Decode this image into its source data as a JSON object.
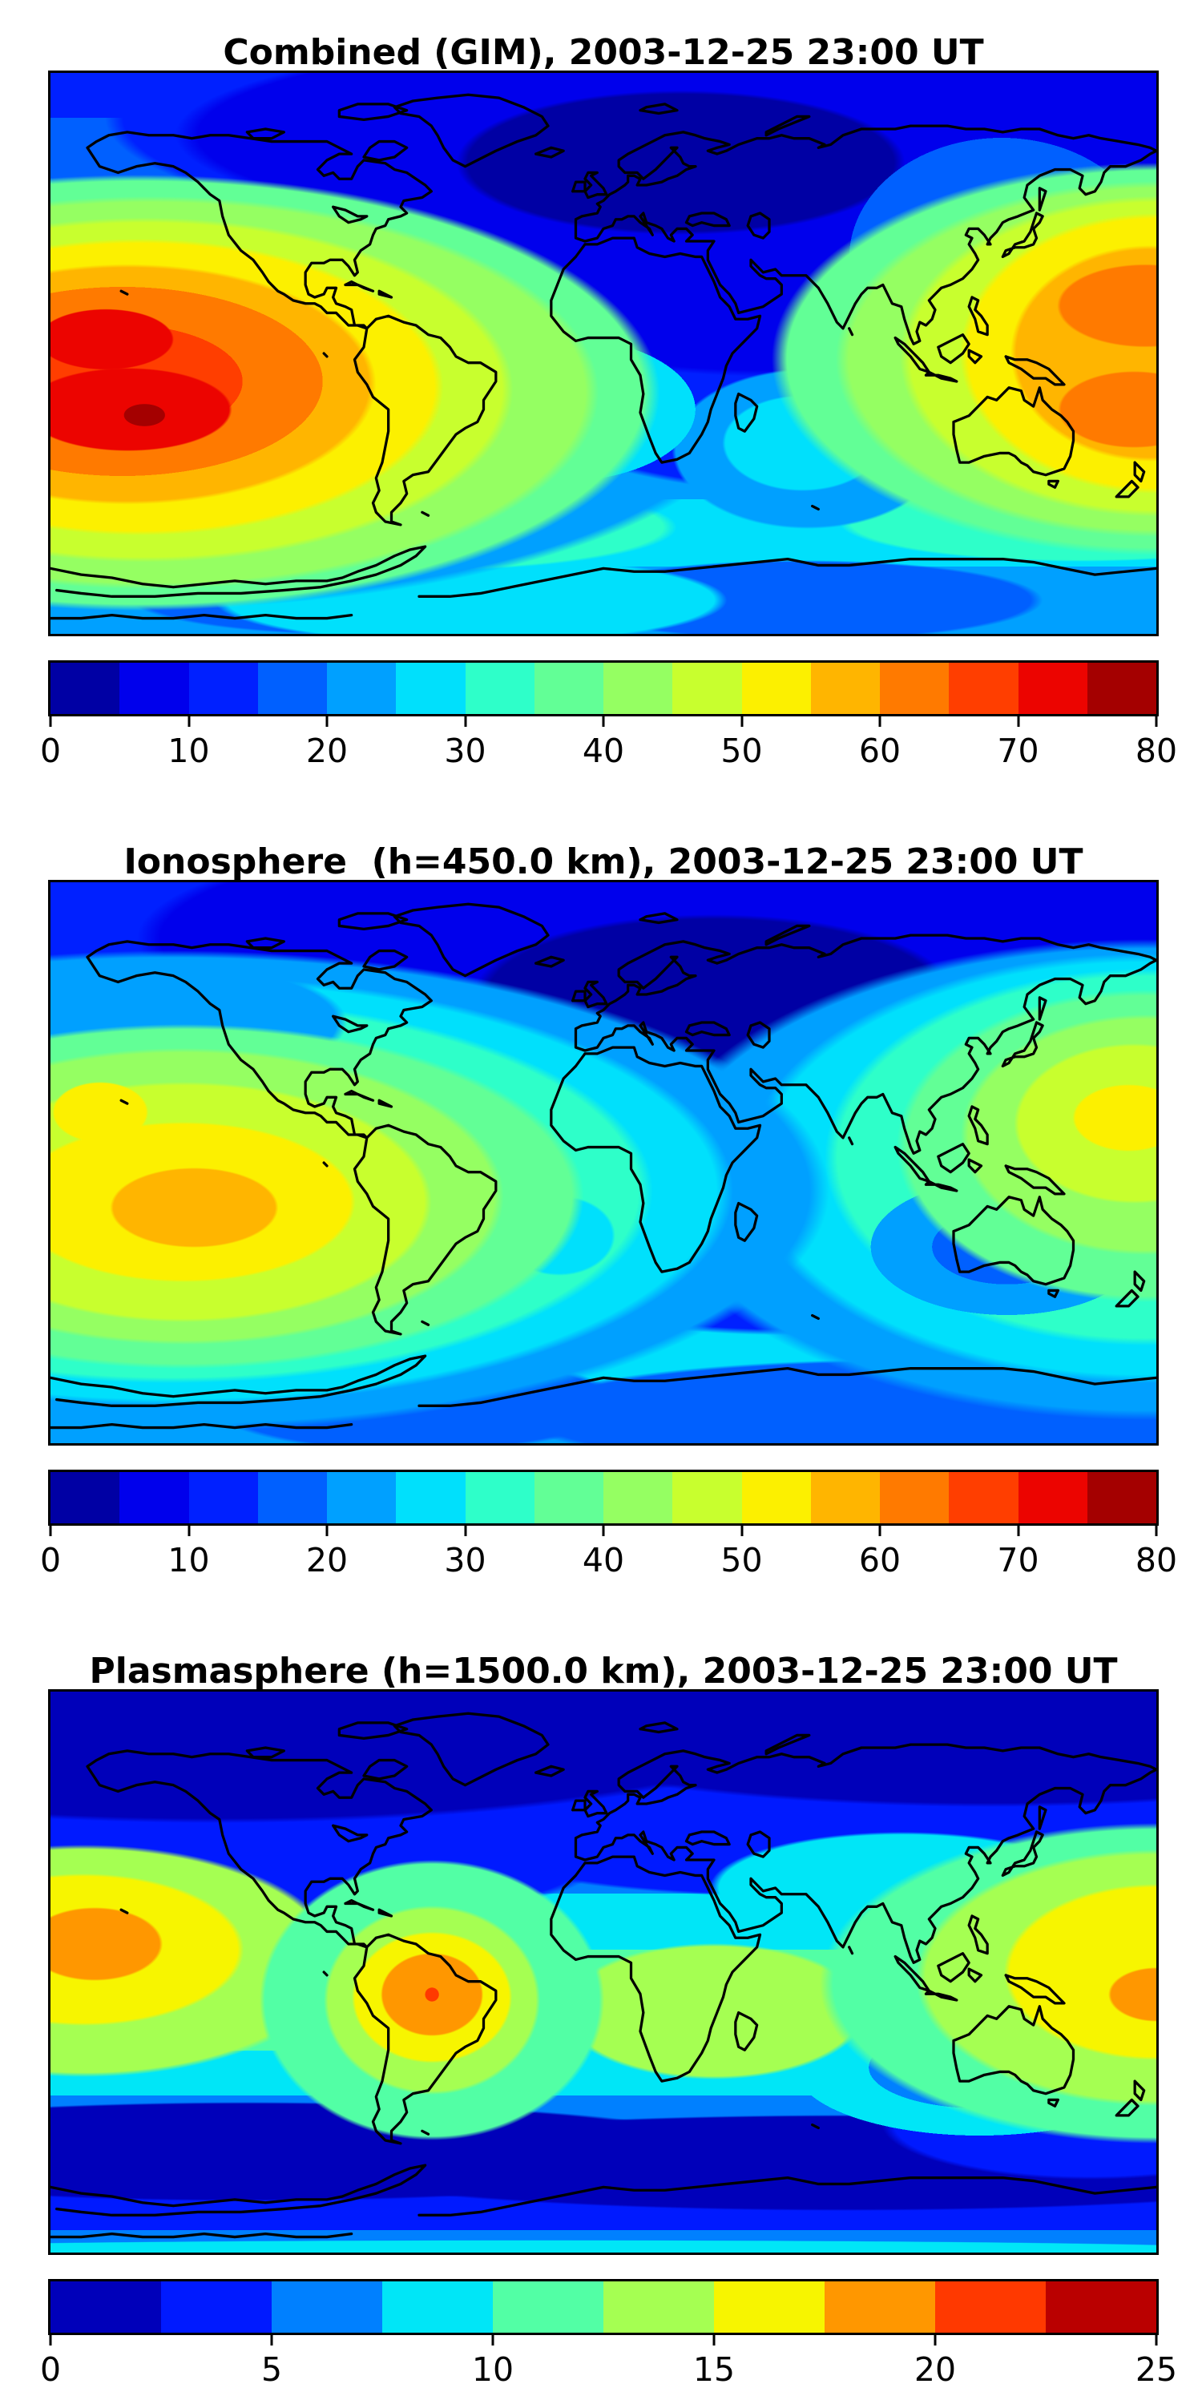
{
  "figure_background": "#ffffff",
  "panels": [
    {
      "id": "combined",
      "title": "Combined (GIM), 2003-12-25 23:00 UT",
      "colorbar": {
        "min": 0,
        "max": 80,
        "segments": 16,
        "segment_colors": [
          "#0000A4",
          "#0000EC",
          "#0020FF",
          "#0060FF",
          "#00A0FF",
          "#00E0FC",
          "#2EFFC9",
          "#62FF96",
          "#95FF62",
          "#C8FF2E",
          "#FCF000",
          "#FFB500",
          "#FF7A00",
          "#FF3E00",
          "#EC0400",
          "#A40000"
        ],
        "tick_values": [
          0,
          10,
          20,
          30,
          40,
          50,
          60,
          70,
          80
        ],
        "tick_labels": [
          "0",
          "10",
          "20",
          "30",
          "40",
          "50",
          "60",
          "70",
          "80"
        ]
      }
    },
    {
      "id": "ionosphere",
      "title": "Ionosphere  (h=450.0 km), 2003-12-25 23:00 UT",
      "colorbar": {
        "min": 0,
        "max": 80,
        "segments": 16,
        "segment_colors": [
          "#0000A4",
          "#0000EC",
          "#0020FF",
          "#0060FF",
          "#00A0FF",
          "#00E0FC",
          "#2EFFC9",
          "#62FF96",
          "#95FF62",
          "#C8FF2E",
          "#FCF000",
          "#FFB500",
          "#FF7A00",
          "#FF3E00",
          "#EC0400",
          "#A40000"
        ],
        "tick_values": [
          0,
          10,
          20,
          30,
          40,
          50,
          60,
          70,
          80
        ],
        "tick_labels": [
          "0",
          "10",
          "20",
          "30",
          "40",
          "50",
          "60",
          "70",
          "80"
        ]
      }
    },
    {
      "id": "plasmasphere",
      "title": "Plasmasphere (h=1500.0 km), 2003-12-25 23:00 UT",
      "colorbar": {
        "min": 0,
        "max": 25,
        "segments": 10,
        "segment_colors": [
          "#0000BA",
          "#001AFF",
          "#0080FF",
          "#00E6F7",
          "#52FFA5",
          "#A5FF52",
          "#F7F500",
          "#FF9700",
          "#FF3900",
          "#BA0000"
        ],
        "tick_values": [
          0,
          5,
          10,
          15,
          20,
          25
        ],
        "tick_labels": [
          "0",
          "5",
          "10",
          "15",
          "20",
          "25"
        ]
      }
    }
  ],
  "chart_data": [
    {
      "type": "heatmap",
      "subtype": "filled-contour-world-map",
      "title": "Combined (GIM), 2003-12-25 23:00 UT",
      "projection": "equirectangular",
      "lon_range": [
        -180,
        180
      ],
      "lat_range": [
        -90,
        90
      ],
      "colormap": "jet",
      "levels": {
        "min": 0,
        "max": 80,
        "step": 5
      },
      "legend_position": "bottom-colorbar",
      "grid": {
        "lons": [
          -180,
          -150,
          -120,
          -90,
          -60,
          -30,
          0,
          30,
          60,
          90,
          120,
          150,
          180
        ],
        "lats": [
          80,
          60,
          40,
          20,
          0,
          -20,
          -40,
          -60,
          -80
        ],
        "values": [
          [
            12,
            12,
            12,
            10,
            8,
            8,
            8,
            8,
            8,
            10,
            12,
            12,
            12
          ],
          [
            15,
            15,
            13,
            10,
            8,
            6,
            5,
            5,
            6,
            8,
            10,
            13,
            15
          ],
          [
            22,
            20,
            17,
            13,
            10,
            8,
            8,
            8,
            8,
            10,
            13,
            18,
            25
          ],
          [
            30,
            27,
            22,
            17,
            13,
            10,
            10,
            10,
            11,
            13,
            18,
            30,
            42
          ],
          [
            45,
            50,
            40,
            32,
            28,
            22,
            15,
            13,
            14,
            18,
            28,
            45,
            55
          ],
          [
            55,
            72,
            60,
            48,
            42,
            30,
            22,
            18,
            20,
            25,
            35,
            50,
            62
          ],
          [
            35,
            40,
            38,
            33,
            30,
            26,
            22,
            18,
            18,
            20,
            25,
            32,
            38
          ],
          [
            28,
            30,
            30,
            28,
            28,
            26,
            24,
            22,
            20,
            20,
            22,
            26,
            30
          ],
          [
            22,
            24,
            26,
            25,
            24,
            22,
            20,
            18,
            16,
            16,
            18,
            20,
            22
          ]
        ]
      },
      "peaks": [
        {
          "lon": -148,
          "lat": -17,
          "value": 73
        },
        {
          "lon": -158,
          "lat": -5,
          "value": 71
        },
        {
          "lon": 176,
          "lat": 16,
          "value": 63
        },
        {
          "lon": 173,
          "lat": -18,
          "value": 62
        }
      ],
      "minima": [
        {
          "lon": 60,
          "lat": 55,
          "value": 4
        }
      ]
    },
    {
      "type": "heatmap",
      "subtype": "filled-contour-world-map",
      "title": "Ionosphere  (h=450.0 km), 2003-12-25 23:00 UT",
      "projection": "equirectangular",
      "lon_range": [
        -180,
        180
      ],
      "lat_range": [
        -90,
        90
      ],
      "colormap": "jet",
      "levels": {
        "min": 0,
        "max": 80,
        "step": 5
      },
      "legend_position": "bottom-colorbar",
      "grid": {
        "lons": [
          -180,
          -150,
          -120,
          -90,
          -60,
          -30,
          0,
          30,
          60,
          90,
          120,
          150,
          180
        ],
        "lats": [
          80,
          60,
          40,
          20,
          0,
          -20,
          -40,
          -60,
          -80
        ],
        "values": [
          [
            8,
            8,
            8,
            7,
            6,
            5,
            5,
            5,
            5,
            6,
            7,
            8,
            8
          ],
          [
            10,
            10,
            9,
            7,
            5,
            4,
            3,
            3,
            4,
            5,
            6,
            8,
            10
          ],
          [
            15,
            14,
            12,
            9,
            7,
            5,
            4,
            4,
            4,
            6,
            8,
            12,
            18
          ],
          [
            22,
            20,
            16,
            12,
            9,
            6,
            5,
            5,
            5,
            7,
            10,
            20,
            30
          ],
          [
            32,
            35,
            28,
            22,
            18,
            14,
            9,
            7,
            8,
            10,
            16,
            30,
            40
          ],
          [
            40,
            52,
            42,
            34,
            30,
            20,
            14,
            10,
            12,
            15,
            22,
            35,
            42
          ],
          [
            28,
            32,
            30,
            26,
            24,
            18,
            15,
            12,
            12,
            14,
            18,
            24,
            28
          ],
          [
            22,
            25,
            25,
            24,
            23,
            21,
            19,
            17,
            15,
            15,
            17,
            20,
            23
          ],
          [
            16,
            18,
            20,
            20,
            19,
            17,
            15,
            13,
            12,
            12,
            13,
            15,
            16
          ]
        ]
      },
      "peaks": [
        {
          "lon": -134,
          "lat": -14,
          "value": 57
        },
        {
          "lon": -164,
          "lat": 16,
          "value": 51
        },
        {
          "lon": 171,
          "lat": 14,
          "value": 52
        }
      ],
      "minima": [
        {
          "lon": 60,
          "lat": 45,
          "value": 3
        }
      ]
    },
    {
      "type": "heatmap",
      "subtype": "filled-contour-world-map",
      "title": "Plasmasphere (h=1500.0 km), 2003-12-25 23:00 UT",
      "projection": "equirectangular",
      "lon_range": [
        -180,
        180
      ],
      "lat_range": [
        -90,
        90
      ],
      "colormap": "jet",
      "levels": {
        "min": 0,
        "max": 25,
        "step": 2.5
      },
      "legend_position": "bottom-colorbar",
      "grid": {
        "lons": [
          -180,
          -150,
          -120,
          -90,
          -60,
          -30,
          0,
          30,
          60,
          90,
          120,
          150,
          180
        ],
        "lats": [
          80,
          60,
          40,
          20,
          0,
          -20,
          -40,
          -60,
          -80
        ],
        "values": [
          [
            3,
            3,
            3,
            3,
            3,
            3,
            3,
            3,
            3,
            3,
            3,
            3,
            3
          ],
          [
            4,
            4,
            4,
            4,
            4,
            4,
            4,
            4,
            4,
            4,
            4,
            4,
            4
          ],
          [
            6,
            6,
            5,
            5,
            6,
            6,
            6,
            7,
            7,
            7,
            6,
            5,
            6
          ],
          [
            10,
            9,
            8,
            8,
            9,
            9,
            9,
            10,
            10,
            10,
            9,
            8,
            9
          ],
          [
            17,
            14,
            12,
            13,
            15,
            13,
            11,
            11,
            12,
            12,
            11,
            12,
            15
          ],
          [
            19,
            16,
            13,
            19,
            21,
            14,
            12,
            11,
            12,
            11,
            9,
            13,
            18
          ],
          [
            10,
            9,
            9,
            13,
            14,
            10,
            8,
            7,
            7,
            6,
            6,
            8,
            10
          ],
          [
            4,
            4,
            5,
            6,
            6,
            5,
            4,
            4,
            4,
            3,
            3,
            4,
            4
          ],
          [
            3,
            3,
            3,
            4,
            4,
            4,
            3,
            3,
            3,
            3,
            3,
            3,
            3
          ]
        ]
      },
      "peaks": [
        {
          "lon": -56,
          "lat": -8,
          "value": 23
        },
        {
          "lon": -166,
          "lat": 9,
          "value": 19
        },
        {
          "lon": 178,
          "lat": -7,
          "value": 18
        }
      ],
      "minima": [
        {
          "lon": 0,
          "lat": 80,
          "value": 2
        }
      ]
    }
  ]
}
